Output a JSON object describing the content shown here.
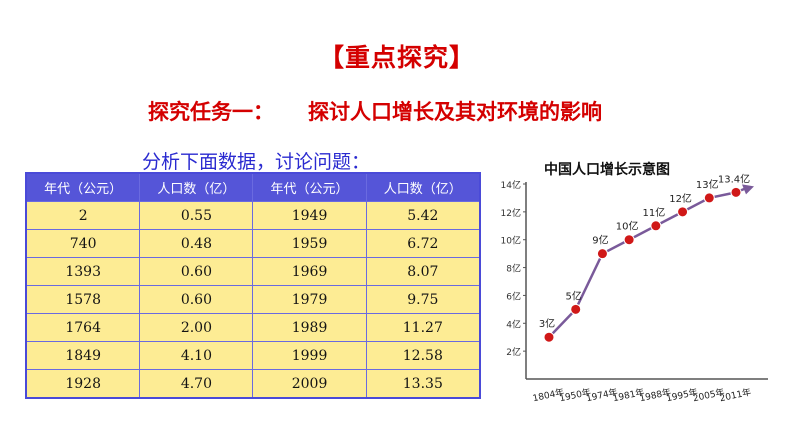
{
  "heading": "【重点探究】",
  "task": {
    "title": "探究任务一：",
    "topic": "探讨人口增长及其对环境的影响"
  },
  "prompt": "分析下面数据，讨论问题：",
  "table": {
    "headers": [
      "年代（公元）",
      "人口数（亿）",
      "年代（公元）",
      "人口数（亿）"
    ],
    "rows": [
      [
        "2",
        "0.55",
        "1949",
        "5.42"
      ],
      [
        "740",
        "0.48",
        "1959",
        "6.72"
      ],
      [
        "1393",
        "0.60",
        "1969",
        "8.07"
      ],
      [
        "1578",
        "0.60",
        "1979",
        "9.75"
      ],
      [
        "1764",
        "2.00",
        "1989",
        "11.27"
      ],
      [
        "1849",
        "4.10",
        "1999",
        "12.58"
      ],
      [
        "1928",
        "4.70",
        "2009",
        "13.35"
      ]
    ]
  },
  "chart_data": {
    "type": "line",
    "title": "中国人口增长示意图",
    "categories": [
      "1804年",
      "1950年",
      "1974年",
      "1981年",
      "1988年",
      "1995年",
      "2005年",
      "2011年"
    ],
    "series": [
      {
        "values": [
          3,
          5,
          9,
          10,
          11,
          12,
          13,
          13.4
        ]
      }
    ],
    "data_labels": [
      "3亿",
      "5亿",
      "9亿",
      "10亿",
      "11亿",
      "12亿",
      "13亿",
      "13.4亿"
    ],
    "yticks": [
      "2亿",
      "4亿",
      "6亿",
      "8亿",
      "10亿",
      "12亿",
      "14亿"
    ],
    "ylim": [
      0,
      14
    ],
    "grid": false,
    "colors": {
      "line": "#7a5a9a",
      "marker": "#d01818",
      "axis": "#555555"
    }
  }
}
